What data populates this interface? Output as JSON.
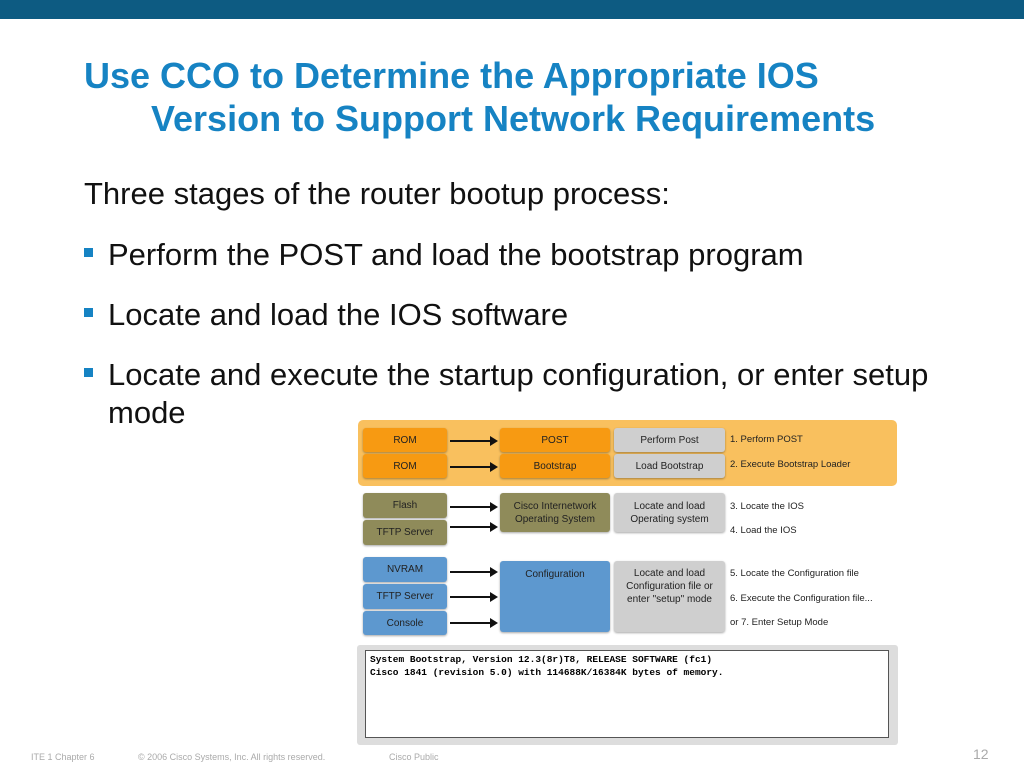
{
  "title": {
    "line1": "Use CCO to Determine the Appropriate IOS",
    "line2": "Version to Support Network Requirements"
  },
  "intro": "Three stages of the router bootup process:",
  "bullets": [
    "Perform the POST and load the bootstrap program",
    "Locate and load the IOS software",
    "Locate and execute the startup configuration, or enter setup mode"
  ],
  "diagram": {
    "stage1": {
      "sources": [
        "ROM",
        "ROM"
      ],
      "components": [
        "POST",
        "Bootstrap"
      ],
      "actions": [
        "Perform Post",
        "Load Bootstrap"
      ],
      "steps": [
        "1. Perform POST",
        "2. Execute Bootstrap Loader"
      ]
    },
    "stage2": {
      "sources": [
        "Flash",
        "TFTP Server"
      ],
      "component": "Cisco Internetwork Operating System",
      "action": "Locate and load Operating system",
      "steps": [
        "3. Locate the IOS",
        "4. Load the IOS"
      ]
    },
    "stage3": {
      "sources": [
        "NVRAM",
        "TFTP Server",
        "Console"
      ],
      "component": "Configuration",
      "action": "Locate and load Configuration file or enter \"setup\" mode",
      "steps": [
        "5. Locate the Configuration file",
        "6. Execute the Configuration file...",
        "or 7. Enter Setup Mode"
      ]
    },
    "console_lines": [
      "System Bootstrap, Version 12.3(8r)T8, RELEASE SOFTWARE (fc1)",
      "Cisco 1841 (revision 5.0) with 114688K/16384K bytes of memory."
    ]
  },
  "footer": {
    "course": "ITE 1 Chapter 6",
    "copyright": "© 2006 Cisco Systems, Inc. All rights reserved.",
    "classification": "Cisco Public",
    "page": "12"
  },
  "colors": {
    "title": "#1683c3",
    "topbar": "#0d5b82",
    "stage1": "#f79a12",
    "stage2": "#8f8b5a",
    "stage3": "#5d98cf"
  }
}
